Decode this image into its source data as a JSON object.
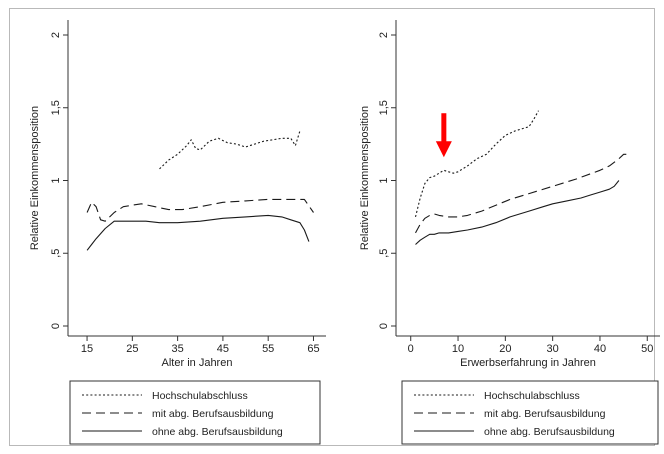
{
  "colors": {
    "line": "#1a1a1a",
    "axis": "#333333",
    "arrow": "#ff0000",
    "background": "#ffffff"
  },
  "chart_data": [
    {
      "type": "line",
      "xlabel": "Alter in Jahren",
      "ylabel": "Relative Einkommensposition",
      "xlim": [
        13,
        66
      ],
      "ylim": [
        0,
        2
      ],
      "xticks": [
        15,
        25,
        35,
        45,
        55,
        65
      ],
      "yticks": [
        {
          "v": 0,
          "t": "0"
        },
        {
          "v": 0.5,
          "t": ",5"
        },
        {
          "v": 1,
          "t": "1"
        },
        {
          "v": 1.5,
          "t": "1,5"
        },
        {
          "v": 2,
          "t": "2"
        }
      ],
      "grid": false,
      "legend_position": "bottom",
      "series": [
        {
          "name": "Hochschulabschluss",
          "dash": "dot",
          "x": [
            31,
            33,
            35,
            37,
            38,
            39,
            40,
            42,
            44,
            46,
            48,
            50,
            52,
            54,
            56,
            58,
            60,
            61,
            62
          ],
          "y": [
            1.08,
            1.14,
            1.18,
            1.24,
            1.28,
            1.22,
            1.21,
            1.27,
            1.29,
            1.26,
            1.25,
            1.23,
            1.25,
            1.27,
            1.28,
            1.29,
            1.29,
            1.24,
            1.34
          ]
        },
        {
          "name": "mit abg. Berufsausbildung",
          "dash": "dash",
          "x": [
            15,
            16,
            17,
            18,
            19,
            21,
            23,
            25,
            27,
            30,
            33,
            36,
            40,
            45,
            50,
            55,
            60,
            63,
            65
          ],
          "y": [
            0.78,
            0.85,
            0.82,
            0.73,
            0.72,
            0.78,
            0.82,
            0.83,
            0.84,
            0.82,
            0.8,
            0.8,
            0.82,
            0.85,
            0.86,
            0.87,
            0.87,
            0.87,
            0.78
          ]
        },
        {
          "name": "ohne abg. Berufsausbildung",
          "dash": "solid",
          "x": [
            15,
            16,
            17,
            19,
            21,
            23,
            25,
            28,
            31,
            35,
            40,
            45,
            50,
            55,
            58,
            60,
            62,
            63,
            64
          ],
          "y": [
            0.52,
            0.56,
            0.6,
            0.67,
            0.72,
            0.72,
            0.72,
            0.72,
            0.71,
            0.71,
            0.72,
            0.74,
            0.75,
            0.76,
            0.75,
            0.73,
            0.71,
            0.66,
            0.58
          ]
        }
      ],
      "legend": [
        "Hochschulabschluss",
        "mit abg. Berufsausbildung",
        "ohne abg. Berufsausbildung"
      ]
    },
    {
      "type": "line",
      "xlabel": "Erwerbserfahrung in Jahren",
      "ylabel": "Relative Einkommensposition",
      "xlim": [
        -1,
        51
      ],
      "ylim": [
        0,
        2
      ],
      "xticks": [
        0,
        10,
        20,
        30,
        40,
        50
      ],
      "yticks": [
        {
          "v": 0,
          "t": "0"
        },
        {
          "v": 0.5,
          "t": ",5"
        },
        {
          "v": 1,
          "t": "1"
        },
        {
          "v": 1.5,
          "t": "1,5"
        },
        {
          "v": 2,
          "t": "2"
        }
      ],
      "grid": false,
      "legend_position": "bottom",
      "series": [
        {
          "name": "Hochschulabschluss",
          "dash": "dot",
          "x": [
            1,
            2,
            3,
            4,
            5,
            6,
            7,
            8,
            9,
            10,
            12,
            14,
            16,
            18,
            20,
            22,
            24,
            25,
            26,
            27
          ],
          "y": [
            0.75,
            0.88,
            0.98,
            1.02,
            1.03,
            1.05,
            1.07,
            1.06,
            1.05,
            1.06,
            1.1,
            1.15,
            1.18,
            1.25,
            1.31,
            1.34,
            1.36,
            1.37,
            1.42,
            1.48
          ]
        },
        {
          "name": "mit abg. Berufsausbildung",
          "dash": "dash",
          "x": [
            1,
            2,
            3,
            4,
            5,
            6,
            8,
            10,
            12,
            15,
            18,
            21,
            25,
            30,
            35,
            40,
            42,
            44,
            45,
            46
          ],
          "y": [
            0.64,
            0.7,
            0.74,
            0.76,
            0.77,
            0.76,
            0.75,
            0.75,
            0.76,
            0.79,
            0.83,
            0.87,
            0.91,
            0.96,
            1.01,
            1.07,
            1.1,
            1.15,
            1.18,
            1.18
          ]
        },
        {
          "name": "ohne abg. Berufsausbildung",
          "dash": "solid",
          "x": [
            1,
            2,
            3,
            4,
            5,
            6,
            8,
            10,
            12,
            15,
            18,
            21,
            25,
            28,
            30,
            33,
            36,
            38,
            40,
            42,
            43,
            44
          ],
          "y": [
            0.56,
            0.59,
            0.61,
            0.63,
            0.63,
            0.64,
            0.64,
            0.65,
            0.66,
            0.68,
            0.71,
            0.75,
            0.79,
            0.82,
            0.84,
            0.86,
            0.88,
            0.9,
            0.92,
            0.94,
            0.96,
            1.0
          ]
        }
      ],
      "legend": [
        "Hochschulabschluss",
        "mit abg. Berufsausbildung",
        "ohne abg. Berufsausbildung"
      ],
      "annotations": [
        {
          "type": "arrow",
          "color": "#ff0000",
          "points_to_x": 7,
          "points_to_y": 1.16,
          "direction": "down"
        }
      ]
    }
  ]
}
